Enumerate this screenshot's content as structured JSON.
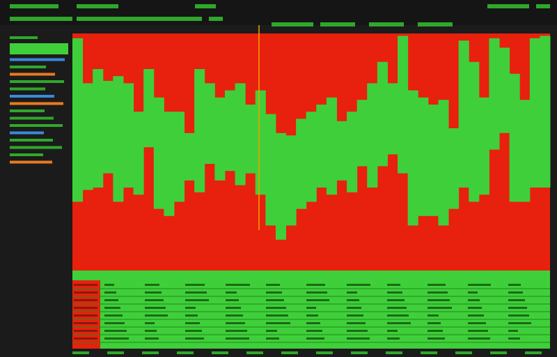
{
  "chart_data": {
    "type": "range-bar",
    "ylim": [
      0,
      100
    ],
    "background_color": "#e8200e",
    "color": "#3fcf3a",
    "high": [
      98,
      79,
      85,
      80,
      82,
      79,
      67,
      85,
      73,
      67,
      67,
      58,
      85,
      79,
      73,
      76,
      79,
      70,
      76,
      66,
      58,
      57,
      64,
      67,
      70,
      73,
      63,
      67,
      72,
      79,
      88,
      79,
      99,
      76,
      73,
      70,
      72,
      60,
      97,
      88,
      73,
      98,
      94,
      83,
      72,
      98,
      99
    ],
    "low": [
      29,
      34,
      35,
      41,
      29,
      35,
      32,
      52,
      26,
      23,
      29,
      38,
      33,
      45,
      38,
      42,
      36,
      41,
      32,
      19,
      13,
      19,
      26,
      29,
      35,
      32,
      38,
      33,
      44,
      35,
      44,
      49,
      41,
      19,
      23,
      23,
      19,
      26,
      35,
      29,
      32,
      51,
      58,
      29,
      29,
      35,
      35
    ]
  }
}
